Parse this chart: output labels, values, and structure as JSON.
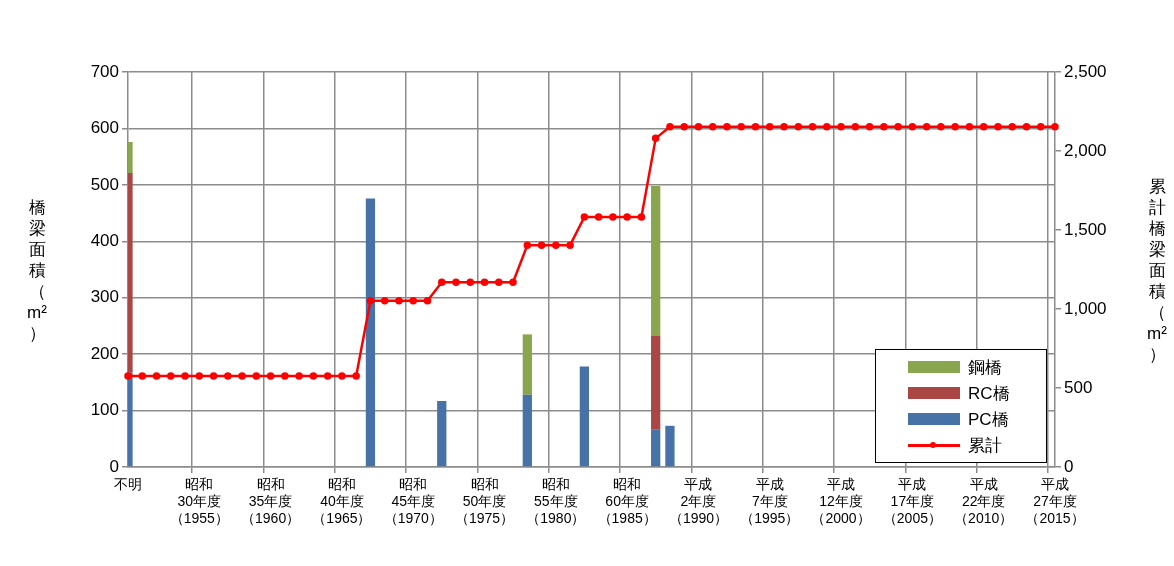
{
  "chart_data": {
    "type": "bar",
    "stacked": true,
    "ylabel": "橋梁面積（m²）",
    "y2label": "累計橋梁面積（m²）",
    "categories": [
      "不明",
      null,
      null,
      null,
      null,
      "昭和30年度（1955）",
      null,
      null,
      null,
      null,
      "昭和35年度（1960）",
      null,
      null,
      null,
      null,
      "昭和40年度（1965）",
      null,
      null,
      null,
      null,
      "昭和45年度（1970）",
      null,
      null,
      null,
      null,
      "昭和50年度（1975）",
      null,
      null,
      null,
      null,
      "昭和55年度（1980）",
      null,
      null,
      null,
      null,
      "昭和60年度（1985）",
      null,
      null,
      null,
      null,
      "平成2年度（1990）",
      null,
      null,
      null,
      null,
      "平成7年度（1995）",
      null,
      null,
      null,
      null,
      "平成12年度（2000）",
      null,
      null,
      null,
      null,
      "平成17年度（2005）",
      null,
      null,
      null,
      null,
      "平成22年度（2010）",
      null,
      null,
      null,
      null,
      "平成27年度（2015）"
    ],
    "series": [
      {
        "name": "PC橋",
        "color": "#4672a8",
        "values": [
          167,
          null,
          null,
          null,
          null,
          null,
          null,
          null,
          null,
          null,
          null,
          null,
          null,
          null,
          null,
          null,
          null,
          476,
          null,
          null,
          null,
          null,
          117,
          null,
          null,
          null,
          null,
          null,
          128,
          null,
          null,
          null,
          178,
          null,
          null,
          null,
          null,
          67,
          73,
          null,
          null,
          null,
          null,
          null,
          null,
          null,
          null,
          null,
          null,
          null,
          null,
          null,
          null,
          null,
          null,
          null,
          null,
          null,
          null,
          null,
          null,
          null,
          null,
          null,
          null,
          null
        ]
      },
      {
        "name": "RC橋",
        "color": "#aa4744",
        "values": [
          354,
          null,
          null,
          null,
          null,
          null,
          null,
          null,
          null,
          null,
          null,
          null,
          null,
          null,
          null,
          null,
          null,
          null,
          null,
          null,
          null,
          null,
          null,
          null,
          null,
          null,
          null,
          null,
          null,
          null,
          null,
          null,
          null,
          null,
          null,
          null,
          null,
          166,
          null,
          null,
          null,
          null,
          null,
          null,
          null,
          null,
          null,
          null,
          null,
          null,
          null,
          null,
          null,
          null,
          null,
          null,
          null,
          null,
          null,
          null,
          null,
          null,
          null,
          null,
          null,
          null
        ]
      },
      {
        "name": "鋼橋",
        "color": "#89a54e",
        "values": [
          55,
          null,
          null,
          null,
          null,
          null,
          null,
          null,
          null,
          null,
          null,
          null,
          null,
          null,
          null,
          null,
          null,
          null,
          null,
          null,
          null,
          null,
          null,
          null,
          null,
          null,
          null,
          null,
          107,
          null,
          null,
          null,
          null,
          null,
          null,
          null,
          null,
          265,
          null,
          null,
          null,
          null,
          null,
          null,
          null,
          null,
          null,
          null,
          null,
          null,
          null,
          null,
          null,
          null,
          null,
          null,
          null,
          null,
          null,
          null,
          null,
          null,
          null,
          null,
          null,
          null
        ]
      },
      {
        "name": "累計",
        "type": "line",
        "axis": "y2",
        "color": "#ff0000",
        "values": [
          576,
          576,
          576,
          576,
          576,
          576,
          576,
          576,
          576,
          576,
          576,
          576,
          576,
          576,
          576,
          576,
          576,
          1052,
          1052,
          1052,
          1052,
          1052,
          1169,
          1169,
          1169,
          1169,
          1169,
          1169,
          1404,
          1404,
          1404,
          1404,
          1582,
          1582,
          1582,
          1582,
          1582,
          2080,
          2153,
          2153,
          2153,
          2153,
          2153,
          2153,
          2153,
          2153,
          2153,
          2153,
          2153,
          2153,
          2153,
          2153,
          2153,
          2153,
          2153,
          2153,
          2153,
          2153,
          2153,
          2153,
          2153,
          2153,
          2153,
          2153,
          2153,
          2153
        ]
      }
    ],
    "ylim": [
      0,
      700
    ],
    "yticks": [
      0,
      100,
      200,
      300,
      400,
      500,
      600,
      700
    ],
    "y2lim": [
      0,
      2500
    ],
    "y2ticks": [
      0,
      500,
      {
        "value": 1000,
        "label": "1,000"
      },
      {
        "value": 1500,
        "label": "1,500"
      },
      {
        "value": 2000,
        "label": "2,000"
      },
      {
        "value": 2500,
        "label": "2,500"
      }
    ],
    "grid": true,
    "legend": "bottom right",
    "marker": "circle"
  }
}
